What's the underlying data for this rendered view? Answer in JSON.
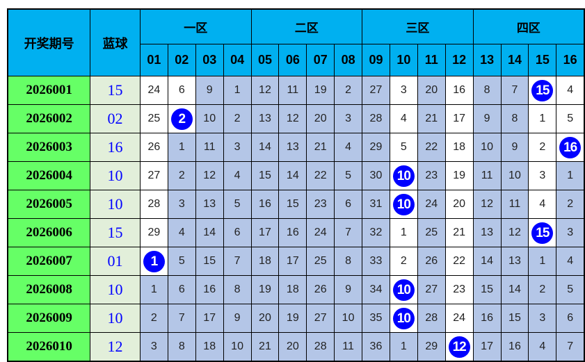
{
  "header": {
    "period_label": "开奖期号",
    "blue_label": "蓝球",
    "zones": [
      "一区",
      "二区",
      "三区",
      "四区"
    ],
    "columns": [
      "01",
      "02",
      "03",
      "04",
      "05",
      "06",
      "07",
      "08",
      "09",
      "10",
      "11",
      "12",
      "13",
      "14",
      "15",
      "16"
    ]
  },
  "colors": {
    "header": "#00b0f0",
    "period": "#66ff66",
    "blue_col": "#e2efda",
    "cell_blue": "#b4c6e7",
    "ball": "#0000ff"
  },
  "rows": [
    {
      "period": "2026001",
      "blue": "15",
      "cells": [
        "24",
        "6",
        "9",
        "1",
        "12",
        "11",
        "19",
        "2",
        "27",
        "3",
        "20",
        "16",
        "8",
        "7",
        "15",
        "4"
      ]
    },
    {
      "period": "2026002",
      "blue": "02",
      "cells": [
        "25",
        "2",
        "10",
        "2",
        "13",
        "12",
        "20",
        "3",
        "28",
        "4",
        "21",
        "17",
        "9",
        "8",
        "1",
        "5"
      ]
    },
    {
      "period": "2026003",
      "blue": "16",
      "cells": [
        "26",
        "1",
        "11",
        "3",
        "14",
        "13",
        "21",
        "4",
        "29",
        "5",
        "22",
        "18",
        "10",
        "9",
        "2",
        "16"
      ]
    },
    {
      "period": "2026004",
      "blue": "10",
      "cells": [
        "27",
        "2",
        "12",
        "4",
        "15",
        "14",
        "22",
        "5",
        "30",
        "10",
        "23",
        "19",
        "11",
        "10",
        "3",
        "1"
      ]
    },
    {
      "period": "2026005",
      "blue": "10",
      "cells": [
        "28",
        "3",
        "13",
        "5",
        "16",
        "15",
        "23",
        "6",
        "31",
        "10",
        "24",
        "20",
        "12",
        "11",
        "4",
        "2"
      ]
    },
    {
      "period": "2026006",
      "blue": "15",
      "cells": [
        "29",
        "4",
        "14",
        "6",
        "17",
        "16",
        "24",
        "7",
        "32",
        "1",
        "25",
        "21",
        "13",
        "12",
        "15",
        "3"
      ]
    },
    {
      "period": "2026007",
      "blue": "01",
      "cells": [
        "1",
        "5",
        "15",
        "7",
        "18",
        "17",
        "25",
        "8",
        "33",
        "2",
        "26",
        "22",
        "14",
        "13",
        "1",
        "4"
      ]
    },
    {
      "period": "2026008",
      "blue": "10",
      "cells": [
        "1",
        "6",
        "16",
        "8",
        "19",
        "18",
        "26",
        "9",
        "34",
        "10",
        "27",
        "23",
        "15",
        "14",
        "2",
        "5"
      ]
    },
    {
      "period": "2026009",
      "blue": "10",
      "cells": [
        "2",
        "7",
        "17",
        "9",
        "20",
        "19",
        "27",
        "10",
        "35",
        "10",
        "28",
        "24",
        "16",
        "15",
        "3",
        "6"
      ]
    },
    {
      "period": "2026010",
      "blue": "12",
      "cells": [
        "3",
        "8",
        "18",
        "10",
        "21",
        "20",
        "28",
        "11",
        "36",
        "1",
        "29",
        "12",
        "17",
        "16",
        "4",
        "7"
      ]
    }
  ]
}
